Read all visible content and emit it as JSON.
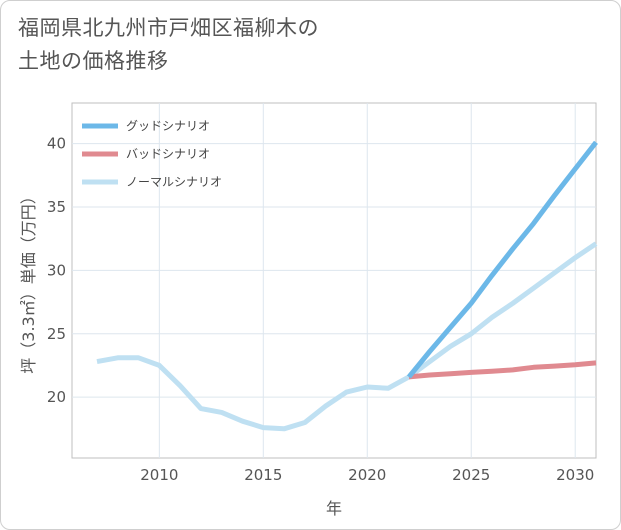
{
  "title_lines": [
    "福岡県北九州市戸畑区福柳木の",
    "土地の価格推移"
  ],
  "chart_data": {
    "type": "line",
    "title": "福岡県北九州市戸畑区福柳木の土地の価格推移",
    "xlabel": "年",
    "ylabel": "坪（3.3㎡）単価（万円）",
    "xlim": [
      2005.8,
      2031
    ],
    "ylim": [
      15.2,
      43.2
    ],
    "xticks": [
      2010,
      2015,
      2020,
      2025,
      2030
    ],
    "yticks": [
      20,
      25,
      30,
      35,
      40
    ],
    "grid": true,
    "legend_position": "top-left",
    "series": [
      {
        "name": "グッドシナリオ",
        "color": "#6cb8e8",
        "x": [
          2022,
          2023,
          2024,
          2025,
          2026,
          2027,
          2028,
          2029,
          2030,
          2031
        ],
        "values": [
          21.6,
          23.6,
          25.5,
          27.4,
          29.6,
          31.7,
          33.7,
          35.9,
          38.0,
          40.1
        ]
      },
      {
        "name": "バッドシナリオ",
        "color": "#e08a90",
        "x": [
          2022,
          2023,
          2024,
          2025,
          2026,
          2027,
          2028,
          2029,
          2030,
          2031
        ],
        "values": [
          21.6,
          21.75,
          21.85,
          21.95,
          22.05,
          22.15,
          22.35,
          22.45,
          22.55,
          22.7
        ]
      },
      {
        "name": "ノーマルシナリオ",
        "color": "#bfe0f2",
        "x": [
          2007,
          2008,
          2009,
          2010,
          2011,
          2012,
          2013,
          2014,
          2015,
          2016,
          2017,
          2018,
          2019,
          2020,
          2021,
          2022,
          2023,
          2024,
          2025,
          2026,
          2027,
          2028,
          2029,
          2030,
          2031
        ],
        "values": [
          22.8,
          23.1,
          23.1,
          22.5,
          20.9,
          19.1,
          18.8,
          18.1,
          17.6,
          17.5,
          18.0,
          19.3,
          20.4,
          20.8,
          20.7,
          21.6,
          22.8,
          24.0,
          25.0,
          26.3,
          27.4,
          28.6,
          29.8,
          31.0,
          32.1
        ]
      }
    ]
  }
}
